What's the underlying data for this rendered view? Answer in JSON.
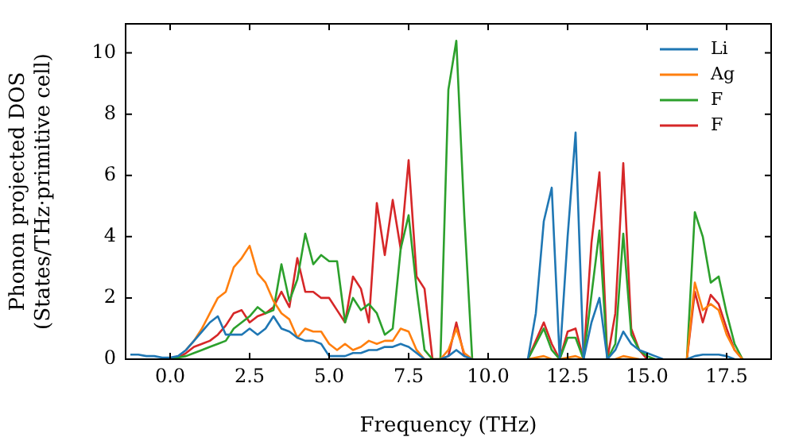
{
  "chart_data": {
    "type": "line",
    "xlabel": "Frequency (THz)",
    "ylabel": "Phonon projected DOS\n(States/THz·primitive cell)",
    "x": [
      -1.25,
      -1,
      -0.75,
      -0.5,
      -0.25,
      0,
      0.25,
      0.5,
      0.75,
      1,
      1.25,
      1.5,
      1.75,
      2,
      2.25,
      2.5,
      2.75,
      3,
      3.25,
      3.5,
      3.75,
      4,
      4.25,
      4.5,
      4.75,
      5,
      5.25,
      5.5,
      5.75,
      6,
      6.25,
      6.5,
      6.75,
      7,
      7.25,
      7.5,
      7.75,
      8,
      8.25,
      8.5,
      8.75,
      9,
      9.25,
      9.5,
      9.75,
      10,
      10.25,
      10.5,
      10.75,
      11,
      11.25,
      11.5,
      11.75,
      12,
      12.25,
      12.5,
      12.75,
      13,
      13.25,
      13.5,
      13.75,
      14,
      14.25,
      14.5,
      14.75,
      15,
      15.25,
      15.5,
      15.75,
      16,
      16.25,
      16.5,
      16.75,
      17,
      17.25,
      17.5,
      17.75,
      18
    ],
    "series": [
      {
        "name": "Li",
        "color": "#1f77b4",
        "values": [
          0.15,
          0.15,
          0.1,
          0.1,
          0.05,
          0.05,
          0.1,
          0.3,
          0.6,
          0.9,
          1.2,
          1.4,
          0.8,
          0.8,
          0.8,
          1.0,
          0.8,
          1.0,
          1.4,
          1.0,
          0.9,
          0.7,
          0.6,
          0.6,
          0.5,
          0.1,
          0.1,
          0.1,
          0.2,
          0.2,
          0.3,
          0.3,
          0.4,
          0.4,
          0.5,
          0.4,
          0.2,
          0,
          null,
          0,
          0.1,
          0.3,
          0.1,
          0,
          null,
          null,
          null,
          null,
          null,
          null,
          0,
          1.5,
          4.5,
          5.6,
          0,
          4.0,
          7.4,
          0,
          1.2,
          2.0,
          0,
          0.3,
          0.9,
          0.5,
          0.3,
          0.2,
          0.1,
          0,
          null,
          null,
          0,
          0.1,
          0.15,
          0.15,
          0.15,
          0.1,
          0,
          null
        ]
      },
      {
        "name": "Ag",
        "color": "#ff7f0e",
        "values": [
          null,
          null,
          null,
          null,
          null,
          null,
          null,
          0.3,
          0.6,
          1.0,
          1.5,
          2.0,
          2.2,
          3.0,
          3.3,
          3.7,
          2.8,
          2.5,
          1.9,
          1.5,
          1.3,
          0.7,
          1.0,
          0.9,
          0.9,
          0.5,
          0.3,
          0.5,
          0.3,
          0.4,
          0.6,
          0.5,
          0.6,
          0.6,
          1.0,
          0.9,
          0.3,
          0,
          null,
          0,
          0.3,
          1.0,
          0.2,
          0,
          null,
          null,
          null,
          null,
          null,
          null,
          0,
          0.05,
          0.1,
          0,
          0,
          0.05,
          0.1,
          0,
          null,
          null,
          null,
          0,
          0.1,
          0.05,
          0,
          null,
          null,
          null,
          null,
          null,
          0,
          2.5,
          1.6,
          1.8,
          1.6,
          0.8,
          0.3,
          0
        ]
      },
      {
        "name": "F",
        "color": "#2ca02c",
        "values": [
          null,
          null,
          null,
          null,
          null,
          0,
          0.05,
          0.1,
          0.2,
          0.3,
          0.4,
          0.5,
          0.6,
          1.0,
          1.2,
          1.4,
          1.7,
          1.5,
          1.6,
          3.1,
          1.9,
          2.6,
          4.1,
          3.1,
          3.4,
          3.2,
          3.2,
          1.2,
          2.0,
          1.6,
          1.8,
          1.5,
          0.8,
          1.0,
          3.6,
          4.7,
          2.3,
          0.3,
          0,
          0,
          8.8,
          10.4,
          4.7,
          0,
          null,
          null,
          null,
          null,
          null,
          null,
          0,
          0.5,
          1.0,
          0.3,
          0,
          0.7,
          0.7,
          0,
          2.1,
          4.2,
          0,
          0.5,
          4.1,
          0.8,
          0.3,
          0.1,
          0,
          null,
          null,
          null,
          0,
          4.8,
          4.0,
          2.5,
          2.7,
          1.5,
          0.5,
          0
        ]
      },
      {
        "name": "F",
        "color": "#d62728",
        "values": [
          null,
          null,
          null,
          null,
          null,
          0,
          0.05,
          0.2,
          0.4,
          0.5,
          0.6,
          0.8,
          1.1,
          1.5,
          1.6,
          1.2,
          1.4,
          1.5,
          1.7,
          2.2,
          1.7,
          3.3,
          2.2,
          2.2,
          2.0,
          2.0,
          1.6,
          1.2,
          2.7,
          2.3,
          1.2,
          5.1,
          3.4,
          5.2,
          3.6,
          6.5,
          2.7,
          2.3,
          0,
          0,
          0.1,
          1.2,
          0.1,
          0,
          null,
          null,
          null,
          null,
          null,
          null,
          0,
          0.6,
          1.2,
          0.5,
          0,
          0.9,
          1.0,
          0,
          3.8,
          6.1,
          0,
          1.5,
          6.4,
          1.0,
          0.3,
          0,
          null,
          null,
          null,
          null,
          0,
          2.2,
          1.2,
          2.1,
          1.8,
          1.0,
          0.3,
          0
        ]
      }
    ],
    "xlim": [
      -1.4,
      18.9
    ],
    "ylim": [
      0,
      10.95
    ],
    "xticks": [
      {
        "value": 0,
        "label": "0.0"
      },
      {
        "value": 2.5,
        "label": "2.5"
      },
      {
        "value": 5,
        "label": "5.0"
      },
      {
        "value": 7.5,
        "label": "7.5"
      },
      {
        "value": 10,
        "label": "10.0"
      },
      {
        "value": 12.5,
        "label": "12.5"
      },
      {
        "value": 15,
        "label": "15.0"
      },
      {
        "value": 17.5,
        "label": "17.5"
      }
    ],
    "yticks": [
      0,
      2,
      4,
      6,
      8,
      10
    ],
    "legend": "top right",
    "marker": "none",
    "line_style": "solid",
    "grid": false
  }
}
